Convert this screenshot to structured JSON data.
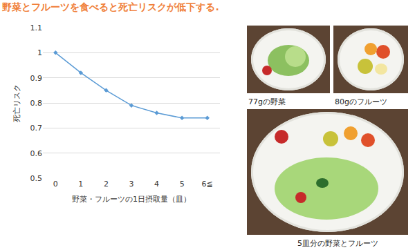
{
  "chart_data": {
    "type": "line",
    "title": "野菜とフルーツを食べると死亡リスクが低下する.",
    "x_label": "野菜・フルーツの1日摂取量（皿）",
    "y_label": "死亡リスク",
    "categories": [
      "0",
      "1",
      "2",
      "3",
      "4",
      "5",
      "6≦"
    ],
    "values": [
      1,
      0.92,
      0.85,
      0.79,
      0.76,
      0.74,
      0.74
    ],
    "color": "#5b9bd5",
    "marker": "diamond",
    "ylim": [
      0.5,
      1.1
    ],
    "yticks": [
      0.5,
      0.6,
      0.7,
      0.8,
      0.9,
      1,
      1.1
    ],
    "grid": true
  },
  "photos": [
    {
      "caption": "77gの野菜"
    },
    {
      "caption": "80gのフルーツ"
    },
    {
      "caption": "5皿分の野菜とフルーツ"
    }
  ]
}
